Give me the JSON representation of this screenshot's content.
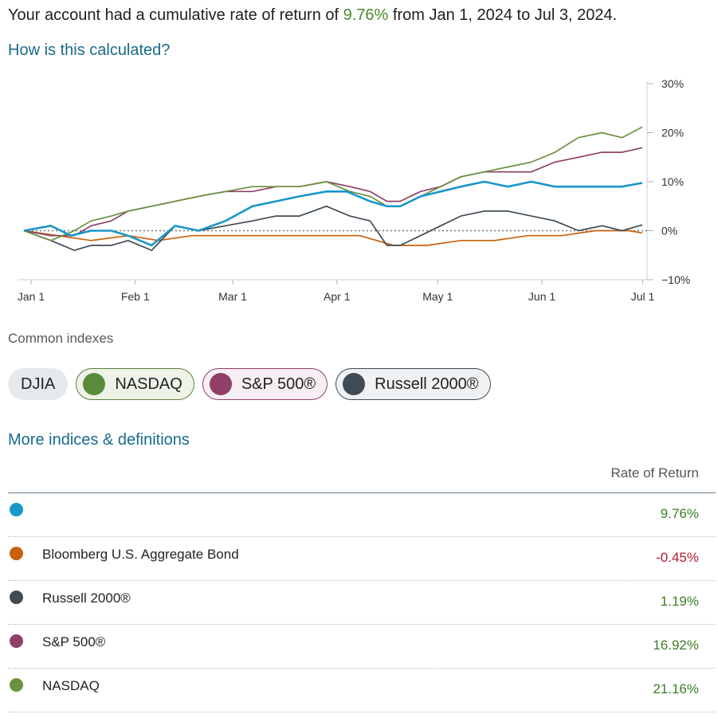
{
  "headline": {
    "prefix": "Your account had a cumulative rate of return of ",
    "value": "9.76%",
    "suffix": " from Jan 1, 2024 to Jul 3, 2024."
  },
  "calc_link": "How is this calculated?",
  "common_indexes_label": "Common indexes",
  "chips": [
    {
      "label": "DJIA",
      "active": false
    },
    {
      "label": "NASDAQ",
      "active": true,
      "color": "#5b8a3a"
    },
    {
      "label": "S&P 500®",
      "active": true,
      "color": "#8f3f68"
    },
    {
      "label": "Russell 2000®",
      "active": true,
      "color": "#3f4b55"
    }
  ],
  "more_link": "More indices & definitions",
  "table": {
    "header": "Rate of Return",
    "rows": [
      {
        "name": "",
        "value": "9.76%",
        "color": "#1a97c9"
      },
      {
        "name": "Bloomberg U.S. Aggregate Bond",
        "value": "-0.45%",
        "color": "#c8610c"
      },
      {
        "name": "Russell 2000®",
        "value": "1.19%",
        "color": "#3f4b55"
      },
      {
        "name": "S&P 500®",
        "value": "16.92%",
        "color": "#8f3f68"
      },
      {
        "name": "NASDAQ",
        "value": "21.16%",
        "color": "#6b9140"
      }
    ]
  },
  "chart_data": {
    "type": "line",
    "x_ticks": [
      "Jan 1",
      "Feb 1",
      "Mar 1",
      "Apr 1",
      "May 1",
      "Jun 1",
      "Jul 1"
    ],
    "y_ticks": [
      "30%",
      "20%",
      "10%",
      "0%",
      "−10%"
    ],
    "ylim": [
      -10,
      30
    ],
    "xlim_days": [
      0,
      184
    ],
    "zero_line": "dotted",
    "series": [
      {
        "name": "",
        "color": "#1a97c9",
        "x": [
          0,
          8,
          14,
          20,
          26,
          31,
          38,
          45,
          52,
          60,
          68,
          75,
          82,
          90,
          96,
          103,
          108,
          112,
          118,
          124,
          130,
          137,
          144,
          151,
          158,
          165,
          172,
          178,
          184
        ],
        "y": [
          0,
          1,
          -1,
          0,
          0,
          -1,
          -3,
          1,
          0,
          2,
          5,
          6,
          7,
          8,
          8,
          6,
          5,
          5,
          7,
          8,
          9,
          10,
          9,
          10,
          9,
          9,
          9,
          9,
          9.76
        ]
      },
      {
        "name": "Bloomberg U.S. Aggregate Bond",
        "color": "#c8610c",
        "x": [
          0,
          10,
          20,
          31,
          40,
          50,
          60,
          70,
          80,
          90,
          100,
          110,
          120,
          130,
          140,
          150,
          160,
          170,
          180,
          184
        ],
        "y": [
          0,
          -1,
          -2,
          -1,
          -2,
          -1,
          -1,
          -1,
          -1,
          -1,
          -1,
          -3,
          -3,
          -2,
          -2,
          -1,
          -1,
          0,
          0,
          -0.45
        ]
      },
      {
        "name": "Russell 2000®",
        "color": "#3f4b55",
        "x": [
          0,
          8,
          15,
          20,
          26,
          31,
          38,
          45,
          52,
          60,
          68,
          75,
          82,
          90,
          97,
          103,
          108,
          112,
          118,
          124,
          130,
          137,
          144,
          151,
          158,
          165,
          172,
          178,
          184
        ],
        "y": [
          0,
          -2,
          -4,
          -3,
          -3,
          -2,
          -4,
          1,
          0,
          1,
          2,
          3,
          3,
          5,
          3,
          2,
          -3,
          -3,
          -1,
          1,
          3,
          4,
          4,
          3,
          2,
          0,
          1,
          0,
          1.19
        ]
      },
      {
        "name": "S&P 500®",
        "color": "#8f3f68",
        "x": [
          0,
          8,
          15,
          20,
          26,
          31,
          38,
          45,
          52,
          60,
          68,
          75,
          82,
          90,
          97,
          103,
          108,
          112,
          118,
          124,
          130,
          137,
          144,
          151,
          158,
          165,
          172,
          178,
          184
        ],
        "y": [
          0,
          -1,
          -1,
          1,
          2,
          4,
          5,
          6,
          7,
          8,
          8,
          9,
          9,
          10,
          9,
          8,
          6,
          6,
          8,
          9,
          11,
          12,
          12,
          12,
          14,
          15,
          16,
          16,
          16.92
        ]
      },
      {
        "name": "NASDAQ",
        "color": "#6b9140",
        "x": [
          0,
          8,
          15,
          20,
          26,
          31,
          38,
          45,
          52,
          60,
          68,
          75,
          82,
          90,
          97,
          103,
          108,
          112,
          118,
          124,
          130,
          137,
          144,
          151,
          158,
          165,
          172,
          178,
          184
        ],
        "y": [
          0,
          -2,
          0,
          2,
          3,
          4,
          5,
          6,
          7,
          8,
          9,
          9,
          9,
          10,
          8,
          7,
          5,
          5,
          7,
          9,
          11,
          12,
          13,
          14,
          16,
          19,
          20,
          19,
          21.16
        ]
      }
    ]
  }
}
